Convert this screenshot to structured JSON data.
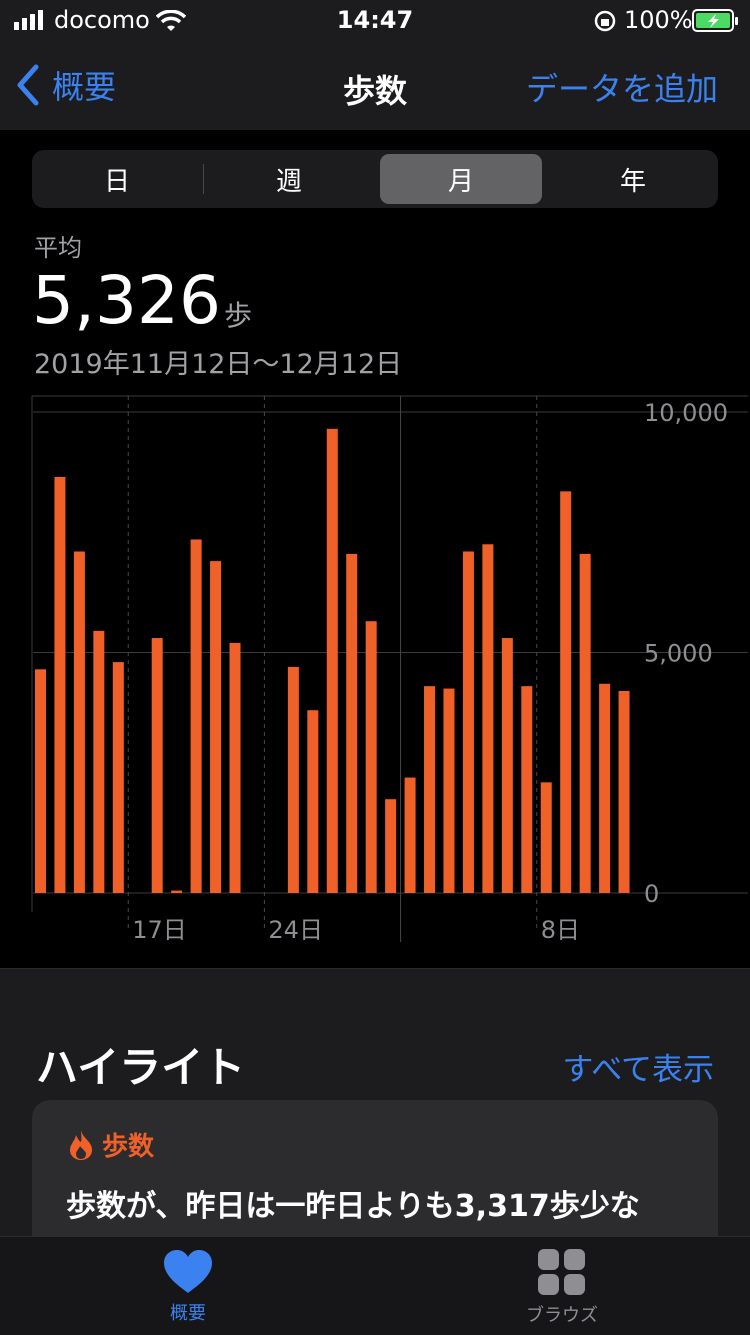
{
  "status_bar": {
    "carrier": "docomo",
    "time": "14:47",
    "battery": "100%"
  },
  "nav": {
    "back_label": "概要",
    "title": "歩数",
    "add_label": "データを追加"
  },
  "segments": [
    "日",
    "週",
    "月",
    "年"
  ],
  "selected_segment": "月",
  "stats": {
    "label": "平均",
    "value": "5,326",
    "unit": "歩",
    "range": "2019年11月12日〜12月12日"
  },
  "chart_data": {
    "type": "bar",
    "categories": [
      "11/12",
      "11/13",
      "11/14",
      "11/15",
      "11/16",
      "11/17",
      "11/18",
      "11/19",
      "11/20",
      "11/21",
      "11/22",
      "11/23",
      "11/24",
      "11/25",
      "11/26",
      "11/27",
      "11/28",
      "11/29",
      "11/30",
      "12/1",
      "12/2",
      "12/3",
      "12/4",
      "12/5",
      "12/6",
      "12/7",
      "12/8",
      "12/9",
      "12/10",
      "12/11",
      "12/12"
    ],
    "values": [
      4650,
      8650,
      7100,
      5450,
      4800,
      0,
      5300,
      50,
      7350,
      6900,
      5200,
      0,
      0,
      4700,
      3800,
      9650,
      7050,
      5650,
      1950,
      2400,
      4300,
      4250,
      7100,
      7250,
      5300,
      4300,
      2300,
      8350,
      7050,
      4350,
      4200
    ],
    "ylim": [
      0,
      10000
    ],
    "y_ticks": [
      "10,000",
      "5,000",
      "0"
    ],
    "x_ticks": [
      "17日",
      "24日",
      "8日"
    ],
    "bar_color": "#f0612a",
    "grid": true
  },
  "highlights": {
    "title": "ハイライト",
    "show_all": "すべて表示",
    "card": {
      "label": "歩数",
      "text": "歩数が、昨日は一昨日よりも3,317歩少な"
    }
  },
  "tabs": [
    {
      "label": "概要",
      "icon": "heart-icon",
      "active": true
    },
    {
      "label": "ブラウズ",
      "icon": "grid-icon",
      "active": false
    }
  ],
  "colors": {
    "accent": "#3b82f0",
    "steps": "#f0612a"
  }
}
